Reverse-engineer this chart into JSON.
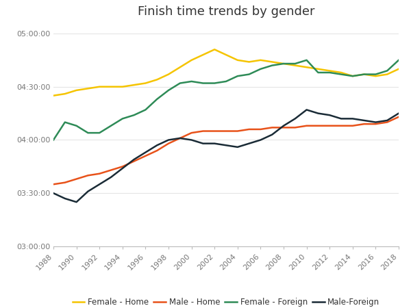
{
  "title": "Finish time trends by gender",
  "years": [
    1988,
    1989,
    1990,
    1991,
    1992,
    1993,
    1994,
    1995,
    1996,
    1997,
    1998,
    1999,
    2000,
    2001,
    2002,
    2003,
    2004,
    2005,
    2006,
    2007,
    2008,
    2009,
    2010,
    2011,
    2012,
    2013,
    2014,
    2015,
    2016,
    2017,
    2018
  ],
  "female_home": [
    265,
    266,
    268,
    269,
    270,
    270,
    270,
    271,
    272,
    274,
    277,
    281,
    285,
    288,
    291,
    288,
    285,
    284,
    285,
    284,
    283,
    282,
    281,
    280,
    279,
    278,
    276,
    277,
    276,
    277,
    280
  ],
  "male_home": [
    215,
    216,
    218,
    220,
    221,
    223,
    225,
    228,
    231,
    234,
    238,
    241,
    244,
    245,
    245,
    245,
    245,
    246,
    246,
    247,
    247,
    247,
    248,
    248,
    248,
    248,
    248,
    249,
    249,
    250,
    253
  ],
  "female_foreign": [
    240,
    250,
    248,
    244,
    244,
    248,
    252,
    254,
    257,
    263,
    268,
    272,
    273,
    272,
    272,
    273,
    276,
    277,
    280,
    282,
    283,
    283,
    285,
    278,
    278,
    277,
    276,
    277,
    277,
    279,
    285
  ],
  "male_foreign": [
    210,
    207,
    205,
    211,
    215,
    219,
    224,
    229,
    233,
    237,
    240,
    241,
    240,
    238,
    238,
    237,
    236,
    238,
    240,
    243,
    248,
    252,
    257,
    255,
    254,
    252,
    252,
    251,
    250,
    251,
    255
  ],
  "colors": {
    "female_home": "#f5c400",
    "male_home": "#e8521a",
    "female_foreign": "#2e8b57",
    "male_foreign": "#1a2b36"
  },
  "legend_labels": [
    "Female - Home",
    "Male - Home",
    "Female - Foreign",
    "Male-Foreign"
  ],
  "ylim_min": 180,
  "ylim_max": 305,
  "yticks": [
    180,
    210,
    240,
    270,
    300
  ],
  "ytick_labels": [
    "03:00:00",
    "03:30:00",
    "04:00:00",
    "04:30:00",
    "05:00:00"
  ],
  "xticks": [
    1988,
    1990,
    1992,
    1994,
    1996,
    1998,
    2000,
    2002,
    2004,
    2006,
    2008,
    2010,
    2012,
    2014,
    2016,
    2018
  ],
  "background_color": "#ffffff"
}
